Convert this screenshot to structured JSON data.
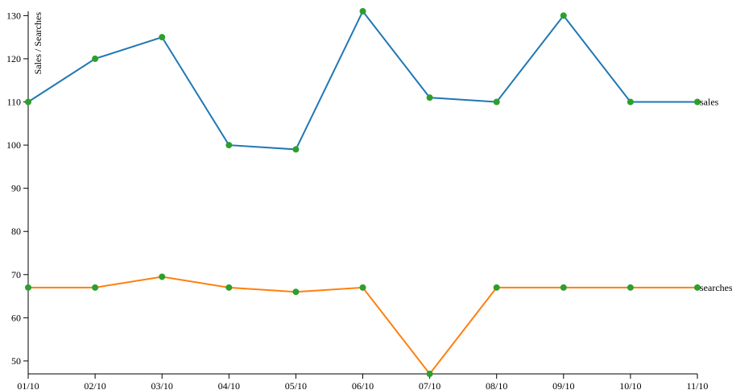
{
  "chart_data": {
    "type": "line",
    "y_label": "Sales / Searches",
    "categories": [
      "01/10",
      "02/10",
      "03/10",
      "04/10",
      "05/10",
      "06/10",
      "07/10",
      "08/10",
      "09/10",
      "10/10",
      "11/10"
    ],
    "series": [
      {
        "name": "sales",
        "color": "#1f77b4",
        "values": [
          110,
          120,
          125,
          100,
          99,
          131,
          111,
          110,
          130,
          110,
          110
        ]
      },
      {
        "name": "searches",
        "color": "#ff7f0e",
        "values": [
          67,
          67,
          69.5,
          67,
          66,
          67,
          47,
          67,
          67,
          67,
          67
        ]
      }
    ],
    "marker_color": "#2ca02c",
    "ylim": [
      47,
      131
    ],
    "yticks": [
      50,
      60,
      70,
      80,
      90,
      100,
      110,
      120,
      130
    ]
  }
}
